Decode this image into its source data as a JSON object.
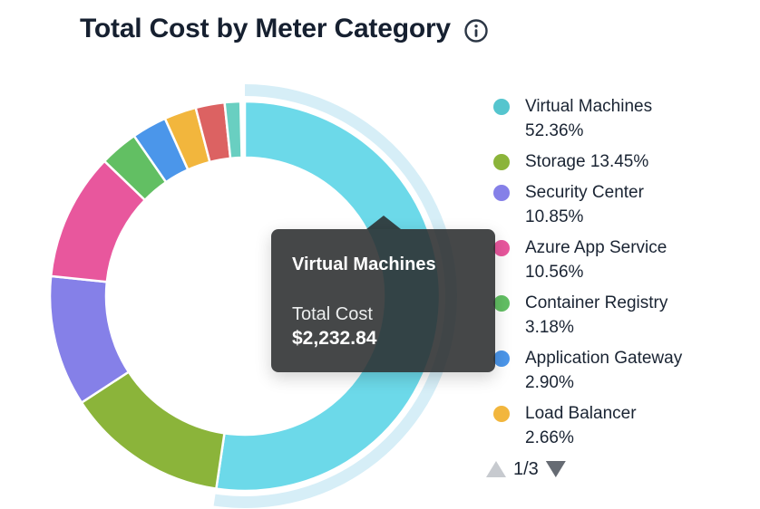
{
  "header": {
    "title": "Total Cost by Meter Category"
  },
  "tooltip": {
    "title": "Virtual Machines",
    "label": "Total Cost",
    "value": "$2,232.84"
  },
  "legend": {
    "items": [
      {
        "name": "Virtual Machines",
        "pct": "52.36%",
        "color": "#55c5ce"
      },
      {
        "name": "Storage",
        "pct": "13.45%",
        "color": "#8bb43a"
      },
      {
        "name": "Security Center",
        "pct": "10.85%",
        "color": "#8580e8"
      },
      {
        "name": "Azure App Service",
        "pct": "10.56%",
        "color": "#e8579d"
      },
      {
        "name": "Container Registry",
        "pct": "3.18%",
        "color": "#62bf63"
      },
      {
        "name": "Application Gateway",
        "pct": "2.90%",
        "color": "#4b96ea"
      },
      {
        "name": "Load Balancer",
        "pct": "2.66%",
        "color": "#f2b63d"
      }
    ],
    "pagination": {
      "current_page": "1/3"
    }
  },
  "chart_data": {
    "type": "pie",
    "donut": true,
    "title": "Total Cost by Meter Category",
    "start_angle_deg": 0,
    "direction": "clockwise",
    "legend_position": "right",
    "highlight_band_color": "#d6eef7",
    "segments": [
      {
        "label": "Virtual Machines",
        "value_pct": 52.36,
        "color": "#6cd9e9",
        "highlighted": true
      },
      {
        "label": "Storage",
        "value_pct": 13.45,
        "color": "#8bb43a"
      },
      {
        "label": "Security Center",
        "value_pct": 10.85,
        "color": "#8580e8"
      },
      {
        "label": "Azure App Service",
        "value_pct": 10.56,
        "color": "#e8579d"
      },
      {
        "label": "Container Registry",
        "value_pct": 3.18,
        "color": "#62bf63"
      },
      {
        "label": "Application Gateway",
        "value_pct": 2.9,
        "color": "#4b96ea"
      },
      {
        "label": "Load Balancer",
        "value_pct": 2.66,
        "color": "#f2b63d"
      },
      {
        "label": "unlabeled-segment-1",
        "value_pct": 2.4,
        "color": "#dc6262",
        "estimated": true
      },
      {
        "label": "unlabeled-segment-2",
        "value_pct": 1.3,
        "color": "#69cfc1",
        "estimated": true
      }
    ],
    "tooltip": {
      "segment": "Virtual Machines",
      "metric": "Total Cost",
      "value": 2232.84
    }
  }
}
